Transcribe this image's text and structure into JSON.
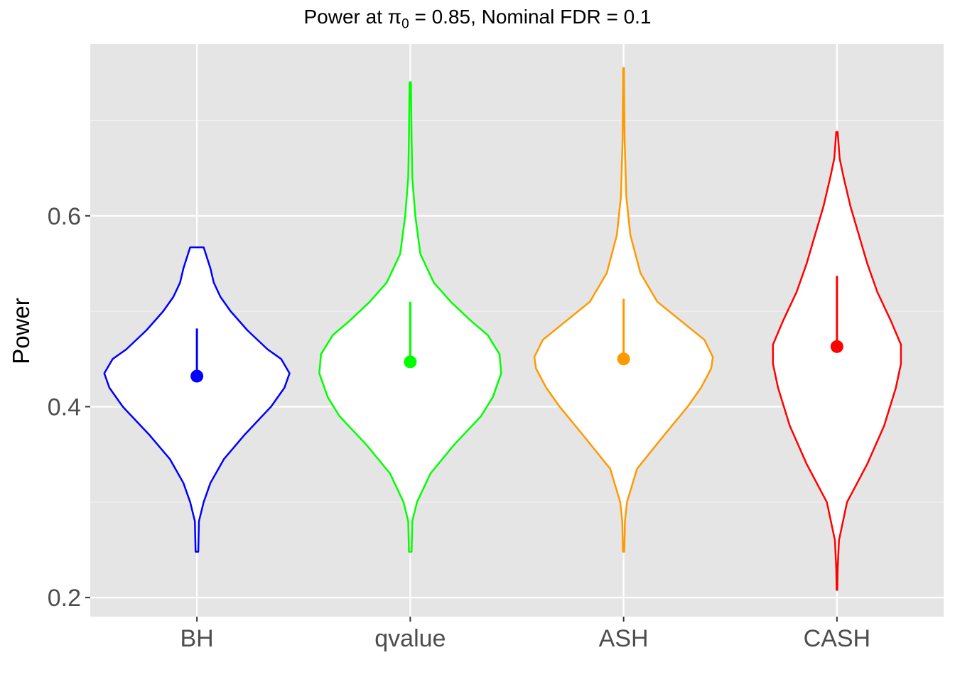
{
  "chart_data": {
    "type": "violin",
    "title_parts": {
      "pre": "Power at π",
      "sub": "0",
      "post": " = 0.85, Nominal FDR = 0.1"
    },
    "xlabel": "",
    "ylabel": "Power",
    "ylim": [
      0.18,
      0.78
    ],
    "yticks": [
      0.2,
      0.4,
      0.6
    ],
    "ytick_labels": [
      "0.2",
      "0.4",
      "0.6"
    ],
    "grid": true,
    "categories": [
      "BH",
      "qvalue",
      "ASH",
      "CASH"
    ],
    "colors": [
      "#0000ff",
      "#00ff00",
      "#ff9900",
      "#ff0000"
    ],
    "series": [
      {
        "category": "BH",
        "point": 0.432,
        "interval_upper": 0.482,
        "violin_profile": [
          [
            0.248,
            0.004
          ],
          [
            0.28,
            0.006
          ],
          [
            0.3,
            0.02
          ],
          [
            0.32,
            0.04
          ],
          [
            0.345,
            0.08
          ],
          [
            0.37,
            0.14
          ],
          [
            0.4,
            0.22
          ],
          [
            0.42,
            0.26
          ],
          [
            0.435,
            0.275
          ],
          [
            0.45,
            0.25
          ],
          [
            0.46,
            0.21
          ],
          [
            0.48,
            0.15
          ],
          [
            0.5,
            0.1
          ],
          [
            0.515,
            0.07
          ],
          [
            0.53,
            0.05
          ],
          [
            0.545,
            0.04
          ],
          [
            0.567,
            0.02
          ]
        ]
      },
      {
        "category": "qvalue",
        "point": 0.447,
        "interval_upper": 0.51,
        "violin_profile": [
          [
            0.248,
            0.004
          ],
          [
            0.28,
            0.006
          ],
          [
            0.3,
            0.02
          ],
          [
            0.33,
            0.06
          ],
          [
            0.36,
            0.13
          ],
          [
            0.39,
            0.21
          ],
          [
            0.41,
            0.245
          ],
          [
            0.435,
            0.27
          ],
          [
            0.455,
            0.265
          ],
          [
            0.475,
            0.23
          ],
          [
            0.49,
            0.18
          ],
          [
            0.51,
            0.12
          ],
          [
            0.53,
            0.07
          ],
          [
            0.56,
            0.03
          ],
          [
            0.6,
            0.015
          ],
          [
            0.64,
            0.006
          ],
          [
            0.68,
            0.004
          ],
          [
            0.74,
            0.002
          ]
        ]
      },
      {
        "category": "ASH",
        "point": 0.45,
        "interval_upper": 0.513,
        "violin_profile": [
          [
            0.248,
            0.002
          ],
          [
            0.28,
            0.004
          ],
          [
            0.3,
            0.01
          ],
          [
            0.335,
            0.04
          ],
          [
            0.37,
            0.12
          ],
          [
            0.4,
            0.19
          ],
          [
            0.42,
            0.23
          ],
          [
            0.44,
            0.26
          ],
          [
            0.452,
            0.265
          ],
          [
            0.47,
            0.24
          ],
          [
            0.49,
            0.17
          ],
          [
            0.51,
            0.1
          ],
          [
            0.54,
            0.05
          ],
          [
            0.58,
            0.02
          ],
          [
            0.62,
            0.008
          ],
          [
            0.68,
            0.003
          ],
          [
            0.755,
            0.001
          ]
        ]
      },
      {
        "category": "CASH",
        "point": 0.463,
        "interval_upper": 0.537,
        "violin_profile": [
          [
            0.208,
            0.001
          ],
          [
            0.23,
            0.002
          ],
          [
            0.26,
            0.006
          ],
          [
            0.3,
            0.03
          ],
          [
            0.34,
            0.09
          ],
          [
            0.38,
            0.14
          ],
          [
            0.42,
            0.175
          ],
          [
            0.445,
            0.19
          ],
          [
            0.465,
            0.19
          ],
          [
            0.49,
            0.16
          ],
          [
            0.52,
            0.12
          ],
          [
            0.55,
            0.09
          ],
          [
            0.58,
            0.065
          ],
          [
            0.61,
            0.04
          ],
          [
            0.64,
            0.02
          ],
          [
            0.66,
            0.008
          ],
          [
            0.688,
            0.002
          ]
        ]
      }
    ]
  }
}
